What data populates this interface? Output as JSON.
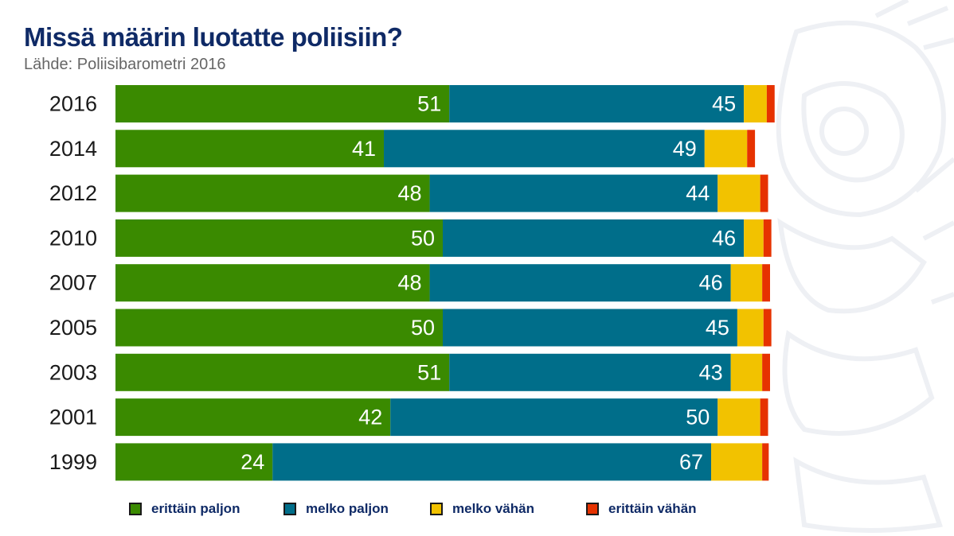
{
  "title": "Missä määrin luotatte poliisiin?",
  "subtitle": "Lähde: Poliisibarometri 2016",
  "colors": {
    "erittain_paljon": "#3a8a00",
    "melko_paljon": "#006e8a",
    "melko_vahan": "#f2c200",
    "erittain_vahan": "#e63200",
    "title": "#0f2a66"
  },
  "chart_data": {
    "type": "bar",
    "orientation": "horizontal",
    "stacked": true,
    "categories": [
      "2016",
      "2014",
      "2012",
      "2010",
      "2007",
      "2005",
      "2003",
      "2001",
      "1999"
    ],
    "series": [
      {
        "name": "erittäin paljon",
        "values": [
          51,
          41,
          48,
          50,
          48,
          50,
          51,
          42,
          24
        ]
      },
      {
        "name": "melko paljon",
        "values": [
          45,
          49,
          44,
          46,
          46,
          45,
          43,
          50,
          67
        ]
      },
      {
        "name": "melko vähän",
        "values": [
          3.5,
          6.5,
          6.5,
          3,
          4.8,
          4,
          4.8,
          6.5,
          7.8
        ]
      },
      {
        "name": "erittäin vähän",
        "values": [
          1.2,
          1.2,
          1.2,
          1.2,
          1.2,
          1.2,
          1.2,
          1.2,
          1
        ]
      }
    ],
    "data_labels": [
      "erittäin paljon",
      "melko paljon"
    ],
    "xlim": [
      0,
      100
    ],
    "legend_position": "bottom",
    "grid": false
  }
}
